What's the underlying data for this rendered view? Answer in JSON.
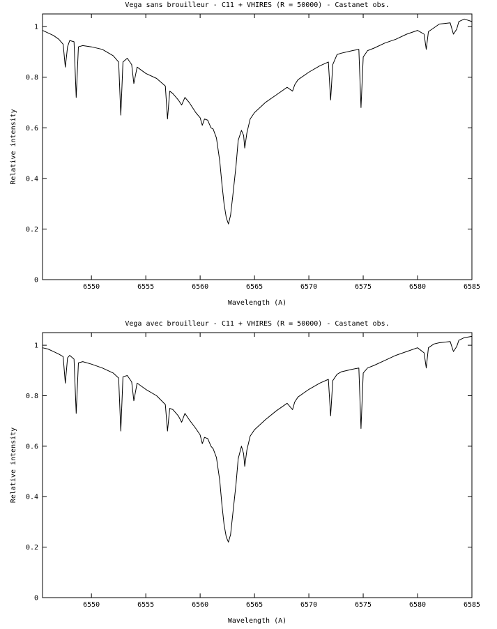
{
  "chart_data": [
    {
      "type": "line",
      "title": "Vega sans brouilleur - C11 + VHIRES (R = 50000) - Castanet obs.",
      "xlabel": "Wavelength (A)",
      "ylabel": "Relative intensity",
      "xlim": [
        6545.5,
        6585
      ],
      "ylim": [
        0,
        1.05
      ],
      "xticks": [
        6550,
        6555,
        6560,
        6565,
        6570,
        6575,
        6580,
        6585
      ],
      "xtick_labels": [
        "6550",
        "6555",
        "6560",
        "6565",
        "6570",
        "6575",
        "6580",
        "6585"
      ],
      "yticks": [
        0,
        0.2,
        0.4,
        0.6,
        0.8,
        1
      ],
      "ytick_labels": [
        "0",
        "0.2",
        "0.4",
        "0.6",
        "0.8",
        "1"
      ],
      "grid": false,
      "legend": "none",
      "line_color": "#000000",
      "series": [
        {
          "x": [
            6545.5,
            6546,
            6546.5,
            6547,
            6547.4,
            6547.6,
            6547.8,
            6548,
            6548.4,
            6548.6,
            6548.8,
            6549.2,
            6550,
            6551,
            6552,
            6552.5,
            6552.7,
            6552.9,
            6553.3,
            6553.7,
            6553.9,
            6554.2,
            6555,
            6556,
            6556.8,
            6557,
            6557.2,
            6557.5,
            6558,
            6558.3,
            6558.6,
            6559,
            6559.6,
            6560,
            6560.2,
            6560.4,
            6560.7,
            6561,
            6561.2,
            6561.5,
            6561.8,
            6562,
            6562.2,
            6562.4,
            6562.6,
            6562.8,
            6563,
            6563.3,
            6563.5,
            6563.8,
            6564,
            6564.1,
            6564.3,
            6564.6,
            6565,
            6566,
            6567,
            6568,
            6568.5,
            6568.7,
            6569,
            6570,
            6571,
            6571.8,
            6572,
            6572.2,
            6572.6,
            6573,
            6574,
            6574.6,
            6574.8,
            6575,
            6575.4,
            6576,
            6577,
            6578,
            6579,
            6580,
            6580.6,
            6580.8,
            6581,
            6581.5,
            6582,
            6583,
            6583.3,
            6583.6,
            6583.8,
            6584.3,
            6585
          ],
          "y": [
            0.985,
            0.975,
            0.965,
            0.95,
            0.93,
            0.84,
            0.92,
            0.945,
            0.94,
            0.72,
            0.92,
            0.925,
            0.92,
            0.91,
            0.885,
            0.86,
            0.65,
            0.86,
            0.875,
            0.85,
            0.775,
            0.84,
            0.815,
            0.795,
            0.765,
            0.635,
            0.745,
            0.735,
            0.71,
            0.69,
            0.72,
            0.7,
            0.66,
            0.64,
            0.61,
            0.635,
            0.63,
            0.6,
            0.595,
            0.56,
            0.47,
            0.38,
            0.3,
            0.245,
            0.22,
            0.255,
            0.33,
            0.45,
            0.55,
            0.59,
            0.57,
            0.52,
            0.58,
            0.635,
            0.66,
            0.7,
            0.73,
            0.76,
            0.745,
            0.77,
            0.79,
            0.82,
            0.845,
            0.86,
            0.71,
            0.85,
            0.89,
            0.895,
            0.905,
            0.91,
            0.68,
            0.88,
            0.905,
            0.915,
            0.935,
            0.95,
            0.97,
            0.985,
            0.97,
            0.91,
            0.98,
            0.995,
            1.01,
            1.015,
            0.97,
            0.99,
            1.02,
            1.03,
            1.02
          ]
        }
      ]
    },
    {
      "type": "line",
      "title": "Vega avec brouilleur - C11 + VHIRES (R = 50000) - Castanet obs.",
      "xlabel": "Wavelength (A)",
      "ylabel": "Relative intensity",
      "xlim": [
        6545.5,
        6585
      ],
      "ylim": [
        0,
        1.05
      ],
      "xticks": [
        6550,
        6555,
        6560,
        6565,
        6570,
        6575,
        6580,
        6585
      ],
      "xtick_labels": [
        "6550",
        "6555",
        "6560",
        "6565",
        "6570",
        "6575",
        "6580",
        "6585"
      ],
      "yticks": [
        0,
        0.2,
        0.4,
        0.6,
        0.8,
        1
      ],
      "ytick_labels": [
        "0",
        "0.2",
        "0.4",
        "0.6",
        "0.8",
        "1"
      ],
      "grid": false,
      "legend": "none",
      "line_color": "#000000",
      "series": [
        {
          "x": [
            6545.5,
            6546,
            6546.5,
            6547,
            6547.4,
            6547.6,
            6547.8,
            6548,
            6548.4,
            6548.6,
            6548.8,
            6549.2,
            6550,
            6551,
            6552,
            6552.5,
            6552.7,
            6552.9,
            6553.3,
            6553.7,
            6553.9,
            6554.2,
            6555,
            6556,
            6556.8,
            6557,
            6557.2,
            6557.5,
            6558,
            6558.3,
            6558.6,
            6559,
            6559.6,
            6560,
            6560.2,
            6560.4,
            6560.7,
            6561,
            6561.2,
            6561.5,
            6561.8,
            6562,
            6562.2,
            6562.4,
            6562.6,
            6562.8,
            6563,
            6563.3,
            6563.5,
            6563.8,
            6564,
            6564.1,
            6564.3,
            6564.6,
            6565,
            6566,
            6567,
            6568,
            6568.5,
            6568.7,
            6569,
            6570,
            6571,
            6571.8,
            6572,
            6572.2,
            6572.6,
            6573,
            6574,
            6574.6,
            6574.8,
            6575,
            6575.4,
            6576,
            6577,
            6578,
            6579,
            6580,
            6580.6,
            6580.8,
            6581,
            6581.5,
            6582,
            6583,
            6583.3,
            6583.6,
            6583.8,
            6584.3,
            6585
          ],
          "y": [
            0.99,
            0.985,
            0.975,
            0.965,
            0.955,
            0.85,
            0.95,
            0.96,
            0.945,
            0.73,
            0.93,
            0.935,
            0.925,
            0.91,
            0.89,
            0.87,
            0.66,
            0.875,
            0.88,
            0.855,
            0.78,
            0.85,
            0.825,
            0.8,
            0.765,
            0.66,
            0.75,
            0.745,
            0.72,
            0.695,
            0.73,
            0.705,
            0.67,
            0.645,
            0.61,
            0.635,
            0.63,
            0.6,
            0.59,
            0.555,
            0.465,
            0.37,
            0.29,
            0.24,
            0.22,
            0.25,
            0.33,
            0.45,
            0.55,
            0.6,
            0.57,
            0.52,
            0.585,
            0.64,
            0.665,
            0.705,
            0.74,
            0.77,
            0.745,
            0.775,
            0.795,
            0.825,
            0.85,
            0.865,
            0.72,
            0.86,
            0.885,
            0.895,
            0.905,
            0.91,
            0.67,
            0.89,
            0.91,
            0.92,
            0.94,
            0.96,
            0.975,
            0.99,
            0.97,
            0.91,
            0.99,
            1.005,
            1.01,
            1.015,
            0.975,
            0.995,
            1.02,
            1.03,
            1.035
          ]
        }
      ]
    }
  ]
}
